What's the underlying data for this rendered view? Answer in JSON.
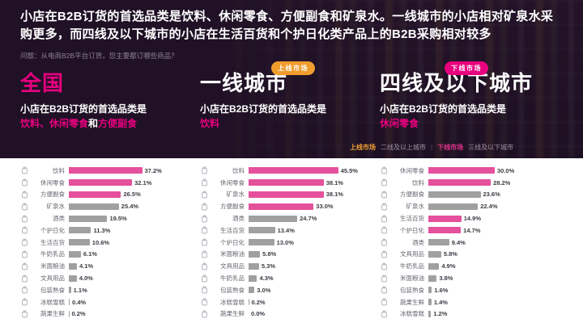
{
  "colors": {
    "pink": "#e6007e",
    "bar_pink": "#e5509c",
    "bar_gray": "#a0a0a0",
    "badge_orange": "#f09d2e",
    "badge_pink": "#e6007e",
    "legend_orange": "#f0a032",
    "legend_pink": "#e6338f"
  },
  "header": {
    "headline": "小店在B2B订货的首选品类是饮料、休闲零食、方便副食和矿泉水。一线城市的小店相对矿泉水采购更多，而四线及以下城市的小店在生活百货和个护日化类产品上的B2B采购相对较多",
    "question": "问题：从电商B2B平台订货，您主要都订哪些商品？"
  },
  "legend": {
    "upper_label": "上线市场",
    "upper_desc": "二线及以上城市",
    "divider": "|",
    "lower_label": "下线市场",
    "lower_desc": "三线及以下城市"
  },
  "sections": [
    {
      "title": "全国",
      "title_color": "#e6007e",
      "badge": null,
      "subtitle_prefix": "小店在B2B订货的首选品类是",
      "subtitle_segments": [
        {
          "text": "饮料、休闲零食",
          "highlight": true
        },
        {
          "text": "和",
          "highlight": false
        },
        {
          "text": "方便副食",
          "highlight": true
        }
      ]
    },
    {
      "title": "一线城市",
      "title_color": "#ffffff",
      "badge": {
        "label": "上线市场",
        "color": "#f09d2e"
      },
      "subtitle_prefix": "小店在B2B订货的首选品类是",
      "subtitle_segments": [
        {
          "text": "饮料",
          "highlight": true
        }
      ]
    },
    {
      "title": "四线及以下城市",
      "title_color": "#ffffff",
      "badge": {
        "label": "下线市场",
        "color": "#e6007e"
      },
      "subtitle_prefix": "小店在B2B订货的首选品类是",
      "subtitle_segments": [
        {
          "text": "休闲零食",
          "highlight": true
        }
      ]
    }
  ],
  "category_icons": {
    "饮料": "drink-bottle-icon",
    "休闲零食": "snack-icon",
    "方便副食": "instant-noodles-icon",
    "矿泉水": "water-bottle-icon",
    "酒类": "wine-icon",
    "个护日化": "personal-care-icon",
    "生活百货": "household-goods-icon",
    "牛奶乳品": "milk-icon",
    "米面粮油": "grain-oil-icon",
    "文具用品": "stationery-icon",
    "包装熟食": "packaged-food-icon",
    "冰糕雪糕": "ice-cream-icon",
    "蔬果生鲜": "fresh-produce-icon"
  },
  "chart_data": [
    {
      "type": "bar",
      "orientation": "horizontal",
      "title": "全国",
      "unit": "%",
      "xlim": [
        0,
        50
      ],
      "categories": [
        "饮料",
        "休闲零食",
        "方便副食",
        "矿泉水",
        "酒类",
        "个护日化",
        "生活百货",
        "牛奶乳品",
        "米面粮油",
        "文具用品",
        "包装熟食",
        "冰糕雪糕",
        "蔬果生鲜"
      ],
      "values": [
        37.2,
        32.1,
        26.5,
        25.4,
        19.5,
        11.3,
        10.6,
        6.1,
        4.1,
        4.0,
        1.1,
        0.4,
        0.2
      ],
      "highlighted": [
        true,
        true,
        true,
        false,
        false,
        false,
        false,
        false,
        false,
        false,
        false,
        false,
        false
      ]
    },
    {
      "type": "bar",
      "orientation": "horizontal",
      "title": "一线城市",
      "unit": "%",
      "xlim": [
        0,
        50
      ],
      "categories": [
        "饮料",
        "休闲零食",
        "矿泉水",
        "方便副食",
        "酒类",
        "生活百货",
        "个护日化",
        "米面粮油",
        "文具用品",
        "牛奶乳品",
        "包装熟食",
        "冰糕雪糕",
        "蔬果生鲜"
      ],
      "values": [
        45.5,
        38.1,
        38.1,
        33.0,
        24.7,
        13.4,
        13.0,
        5.8,
        5.3,
        4.3,
        3.0,
        0.2,
        0.0
      ],
      "highlighted": [
        true,
        true,
        true,
        true,
        false,
        false,
        false,
        false,
        false,
        false,
        false,
        false,
        false
      ]
    },
    {
      "type": "bar",
      "orientation": "horizontal",
      "title": "四线及以下城市",
      "unit": "%",
      "xlim": [
        0,
        50
      ],
      "categories": [
        "休闲零食",
        "饮料",
        "方便副食",
        "矿泉水",
        "生活百货",
        "个护日化",
        "酒类",
        "文具用品",
        "牛奶乳品",
        "米面粮油",
        "包装熟食",
        "蔬果生鲜",
        "冰糕雪糕"
      ],
      "values": [
        30.0,
        28.2,
        23.6,
        22.4,
        14.9,
        14.7,
        9.4,
        5.8,
        4.9,
        3.8,
        1.6,
        1.4,
        1.2
      ],
      "highlighted": [
        true,
        true,
        false,
        false,
        true,
        true,
        false,
        false,
        false,
        false,
        false,
        false,
        false
      ]
    }
  ]
}
